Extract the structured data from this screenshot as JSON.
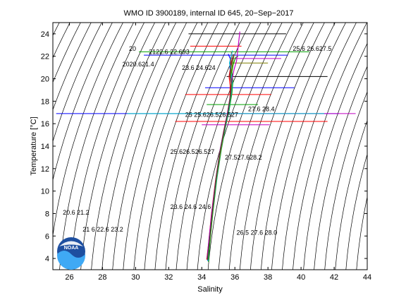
{
  "chart_data": {
    "type": "line",
    "title": "WMO ID 3900189, internal ID 645, 20−Sep−2017",
    "xlabel": "Salinity",
    "ylabel": "Temperature [°C]",
    "xlim": [
      25,
      44
    ],
    "ylim": [
      3,
      25
    ],
    "xticks": [
      26,
      28,
      30,
      32,
      34,
      36,
      38,
      40,
      42,
      44
    ],
    "yticks": [
      4,
      6,
      8,
      10,
      12,
      14,
      16,
      18,
      20,
      22,
      24
    ],
    "grid": false,
    "isopycnals": {
      "sigma0_min": 14.0,
      "sigma0_max": 36.0,
      "step": 0.5,
      "color": "#000000"
    },
    "isopycnal_labels": [
      {
        "text": "20",
        "s": 29.6,
        "t": 22.5
      },
      {
        "text": "2020.621.4",
        "s": 29.2,
        "t": 21.1
      },
      {
        "text": "2122.6 22.693",
        "s": 30.8,
        "t": 22.2
      },
      {
        "text": "23.6 24.624",
        "s": 32.8,
        "t": 20.8
      },
      {
        "text": "25.6 26.627.5",
        "s": 39.5,
        "t": 22.5
      },
      {
        "text": "25 25.626.526.527",
        "s": 33.0,
        "t": 16.6
      },
      {
        "text": "27.6 28.4",
        "s": 36.8,
        "t": 17.1
      },
      {
        "text": "25.626.526.527",
        "s": 32.1,
        "t": 13.3
      },
      {
        "text": "27.527.628.2",
        "s": 35.4,
        "t": 12.8
      },
      {
        "text": "20.6 21.2",
        "s": 25.6,
        "t": 7.9
      },
      {
        "text": "23.6 24.6 24.6",
        "s": 32.1,
        "t": 8.4
      },
      {
        "text": "21 6 22.6 23.2",
        "s": 26.8,
        "t": 6.4
      },
      {
        "text": "26.5 27.6 28.0",
        "s": 36.1,
        "t": 6.1
      }
    ],
    "series": [
      {
        "color": "#0000ff",
        "values": [
          [
            34.35,
            3.8
          ],
          [
            34.45,
            5.5
          ],
          [
            34.6,
            8.0
          ],
          [
            34.85,
            11.0
          ],
          [
            35.1,
            13.5
          ],
          [
            35.35,
            15.4
          ],
          [
            35.6,
            17.0
          ],
          [
            35.75,
            18.5
          ],
          [
            35.8,
            19.6
          ],
          [
            35.75,
            20.4
          ],
          [
            35.7,
            21.0
          ],
          [
            35.72,
            21.8
          ],
          [
            35.6,
            22.2
          ]
        ]
      },
      {
        "color": "#00a000",
        "values": [
          [
            34.4,
            3.7
          ],
          [
            34.5,
            5.6
          ],
          [
            34.68,
            8.2
          ],
          [
            34.92,
            11.2
          ],
          [
            35.18,
            13.7
          ],
          [
            35.42,
            15.6
          ],
          [
            35.65,
            17.2
          ],
          [
            35.82,
            18.7
          ],
          [
            35.88,
            19.8
          ],
          [
            35.82,
            20.6
          ],
          [
            35.9,
            21.3
          ],
          [
            36.05,
            21.9
          ],
          [
            36.2,
            22.0
          ]
        ]
      },
      {
        "color": "#ff0000",
        "values": [
          [
            34.3,
            3.9
          ],
          [
            34.42,
            5.4
          ],
          [
            34.58,
            7.9
          ],
          [
            34.83,
            10.9
          ],
          [
            35.08,
            13.4
          ],
          [
            35.32,
            15.3
          ],
          [
            35.55,
            16.9
          ],
          [
            35.7,
            18.3
          ],
          [
            35.72,
            19.4
          ],
          [
            35.65,
            20.2
          ],
          [
            35.75,
            21.1
          ],
          [
            35.8,
            22.4
          ]
        ]
      },
      {
        "color": "#00c0c0",
        "values": [
          [
            34.38,
            3.8
          ],
          [
            34.48,
            5.7
          ],
          [
            34.65,
            8.1
          ],
          [
            34.9,
            11.1
          ],
          [
            35.15,
            13.6
          ],
          [
            35.4,
            15.5
          ],
          [
            35.62,
            17.1
          ],
          [
            35.78,
            18.6
          ],
          [
            35.84,
            19.7
          ],
          [
            35.78,
            20.5
          ],
          [
            35.68,
            21.4
          ],
          [
            35.85,
            22.5
          ]
        ]
      },
      {
        "color": "#c000c0",
        "values": [
          [
            34.32,
            4.0
          ],
          [
            34.44,
            5.8
          ],
          [
            34.62,
            8.3
          ],
          [
            34.88,
            11.3
          ],
          [
            35.12,
            13.8
          ],
          [
            35.38,
            15.7
          ],
          [
            35.6,
            17.3
          ],
          [
            35.76,
            18.8
          ],
          [
            35.82,
            19.9
          ],
          [
            35.95,
            20.8
          ],
          [
            36.1,
            21.6
          ],
          [
            36.3,
            24.2
          ]
        ]
      },
      {
        "color": "#808000",
        "values": [
          [
            34.36,
            3.9
          ],
          [
            34.47,
            5.5
          ],
          [
            34.64,
            8.0
          ],
          [
            34.87,
            11.0
          ],
          [
            35.13,
            13.5
          ],
          [
            35.37,
            15.4
          ],
          [
            35.58,
            17.0
          ],
          [
            35.74,
            18.4
          ],
          [
            35.8,
            19.5
          ],
          [
            35.74,
            20.3
          ],
          [
            35.85,
            21.2
          ],
          [
            35.95,
            22.1
          ]
        ]
      },
      {
        "color": "#404040",
        "values": [
          [
            34.34,
            3.9
          ],
          [
            34.46,
            5.6
          ],
          [
            34.63,
            8.1
          ],
          [
            34.86,
            11.1
          ],
          [
            35.11,
            13.6
          ],
          [
            35.36,
            15.5
          ],
          [
            35.59,
            17.1
          ],
          [
            35.73,
            18.5
          ],
          [
            35.78,
            19.6
          ],
          [
            35.7,
            20.3
          ],
          [
            35.76,
            21.0
          ],
          [
            35.9,
            22.2
          ]
        ]
      }
    ],
    "horizontal_segments": [
      {
        "t": 22.9,
        "s1": 33.3,
        "s2": 36.4,
        "color": "#ff0000"
      },
      {
        "t": 22.4,
        "s1": 30.2,
        "s2": 40.5,
        "color": "#00a000"
      },
      {
        "t": 22.1,
        "s1": 30.5,
        "s2": 39.2,
        "color": "#0000ff"
      },
      {
        "t": 21.8,
        "s1": 35.7,
        "s2": 38.8,
        "color": "#c000c0"
      },
      {
        "t": 21.4,
        "s1": 35.7,
        "s2": 38.0,
        "color": "#808000"
      },
      {
        "t": 20.2,
        "s1": 35.5,
        "s2": 41.6,
        "color": "#000000"
      },
      {
        "t": 19.2,
        "s1": 34.2,
        "s2": 39.6,
        "color": "#0000ff"
      },
      {
        "t": 18.6,
        "s1": 33.0,
        "s2": 38.2,
        "color": "#ff0000"
      },
      {
        "t": 17.7,
        "s1": 34.3,
        "s2": 37.4,
        "color": "#00a000"
      },
      {
        "t": 16.9,
        "s1": 25.2,
        "s2": 42.3,
        "color": "#0000ff"
      },
      {
        "t": 16.9,
        "s1": 35.3,
        "s2": 43.3,
        "color": "#c000c0"
      },
      {
        "t": 16.9,
        "s1": 29.5,
        "s2": 41.4,
        "color": "#00c0c0"
      },
      {
        "t": 16.2,
        "s1": 32.4,
        "s2": 41.6,
        "color": "#ff0000"
      },
      {
        "t": 15.9,
        "s1": 34.0,
        "s2": 38.1,
        "color": "#c000c0"
      },
      {
        "t": 24.0,
        "s1": 33.2,
        "s2": 39.1,
        "color": "#000000"
      }
    ]
  },
  "logo": {
    "text": "NOAA"
  }
}
